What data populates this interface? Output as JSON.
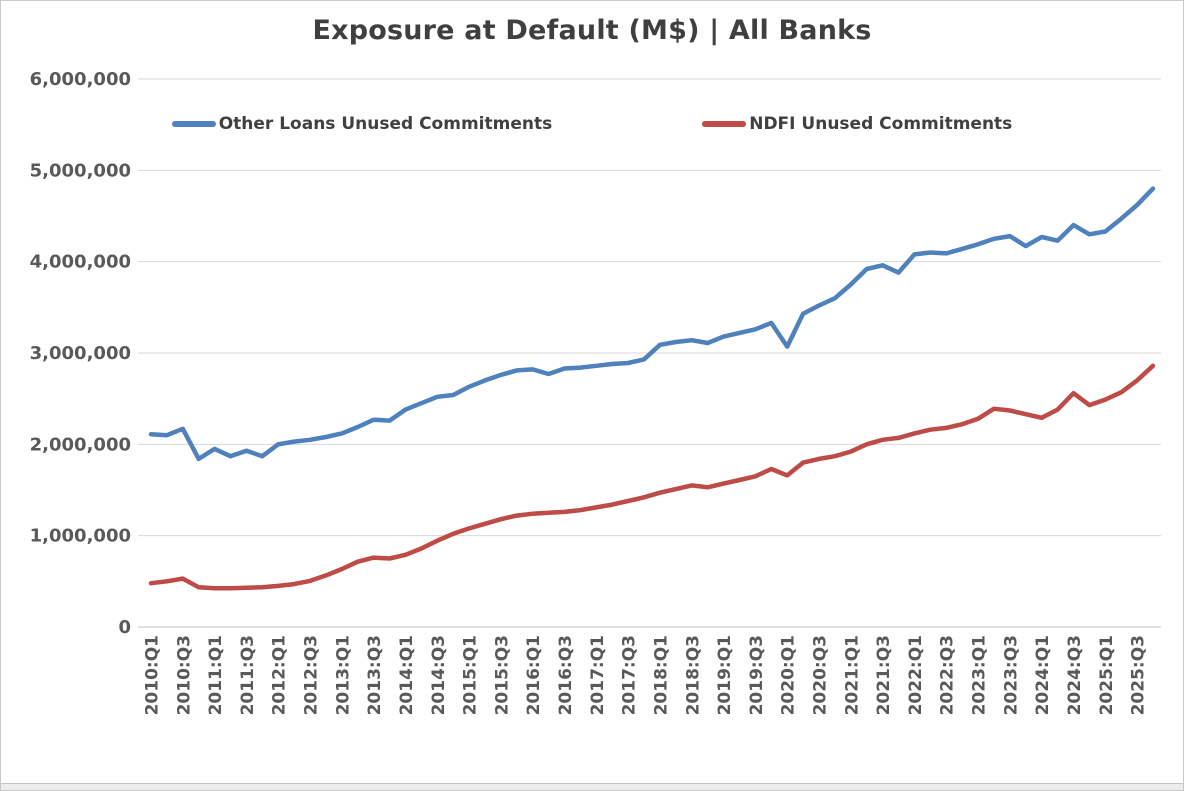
{
  "window": {
    "title": "Exposure at Default (M$) | All Banks"
  },
  "colors": {
    "series_blue": "#4f81bd",
    "series_red": "#bf4b48",
    "title_text": "#3f3f3f",
    "tick_text": "#595959",
    "gridline": "#d9d9d9"
  },
  "chart_data": {
    "type": "line",
    "title": "Exposure at Default (M$) | All Banks",
    "xlabel": "",
    "ylabel": "",
    "grid": true,
    "legend_position": "top",
    "x_tick_step": 2,
    "categories": [
      "2010:Q1",
      "2010:Q2",
      "2010:Q3",
      "2010:Q4",
      "2011:Q1",
      "2011:Q2",
      "2011:Q3",
      "2011:Q4",
      "2012:Q1",
      "2012:Q2",
      "2012:Q3",
      "2012:Q4",
      "2013:Q1",
      "2013:Q2",
      "2013:Q3",
      "2013:Q4",
      "2014:Q1",
      "2014:Q2",
      "2014:Q3",
      "2014:Q4",
      "2015:Q1",
      "2015:Q2",
      "2015:Q3",
      "2015:Q4",
      "2016:Q1",
      "2016:Q2",
      "2016:Q3",
      "2016:Q4",
      "2017:Q1",
      "2017:Q2",
      "2017:Q3",
      "2017:Q4",
      "2018:Q1",
      "2018:Q2",
      "2018:Q3",
      "2018:Q4",
      "2019:Q1",
      "2019:Q2",
      "2019:Q3",
      "2019:Q4",
      "2020:Q1",
      "2020:Q2",
      "2020:Q3",
      "2020:Q4",
      "2021:Q1",
      "2021:Q2",
      "2021:Q3",
      "2021:Q4",
      "2022:Q1",
      "2022:Q2",
      "2022:Q3",
      "2022:Q4",
      "2023:Q1",
      "2023:Q2",
      "2023:Q3",
      "2023:Q4",
      "2024:Q1",
      "2024:Q2",
      "2024:Q3",
      "2024:Q4",
      "2025:Q1",
      "2025:Q2",
      "2025:Q3",
      "2025:Q4"
    ],
    "series": [
      {
        "name": "Other Loans Unused Commitments",
        "color": "#4f81bd",
        "values": [
          2110000,
          2100000,
          2170000,
          1840000,
          1950000,
          1870000,
          1930000,
          1870000,
          2000000,
          2030000,
          2050000,
          2080000,
          2120000,
          2190000,
          2270000,
          2260000,
          2380000,
          2450000,
          2520000,
          2540000,
          2630000,
          2700000,
          2760000,
          2810000,
          2820000,
          2770000,
          2830000,
          2840000,
          2860000,
          2880000,
          2890000,
          2930000,
          3090000,
          3120000,
          3140000,
          3110000,
          3180000,
          3220000,
          3260000,
          3330000,
          3070000,
          3430000,
          3520000,
          3600000,
          3750000,
          3920000,
          3960000,
          3880000,
          4080000,
          4100000,
          4090000,
          4140000,
          4190000,
          4250000,
          4280000,
          4170000,
          4270000,
          4230000,
          4400000,
          4300000,
          4330000,
          4470000,
          4620000,
          4800000
        ]
      },
      {
        "name": "NDFI Unused Commitments",
        "color": "#bf4b48",
        "values": [
          480000,
          500000,
          530000,
          435000,
          425000,
          425000,
          430000,
          435000,
          450000,
          470000,
          505000,
          565000,
          635000,
          715000,
          760000,
          750000,
          790000,
          860000,
          945000,
          1020000,
          1080000,
          1130000,
          1180000,
          1220000,
          1240000,
          1250000,
          1260000,
          1280000,
          1310000,
          1340000,
          1380000,
          1420000,
          1470000,
          1510000,
          1550000,
          1530000,
          1570000,
          1610000,
          1650000,
          1730000,
          1660000,
          1800000,
          1840000,
          1870000,
          1920000,
          2000000,
          2050000,
          2070000,
          2120000,
          2160000,
          2180000,
          2220000,
          2280000,
          2390000,
          2370000,
          2330000,
          2290000,
          2380000,
          2560000,
          2430000,
          2490000,
          2570000,
          2700000,
          2860000
        ]
      }
    ],
    "y_axis": {
      "min": 0,
      "max": 6000000,
      "tick_interval": 1000000,
      "tick_labels": [
        "0",
        "1,000,000",
        "2,000,000",
        "3,000,000",
        "4,000,000",
        "5,000,000",
        "6,000,000"
      ]
    }
  }
}
